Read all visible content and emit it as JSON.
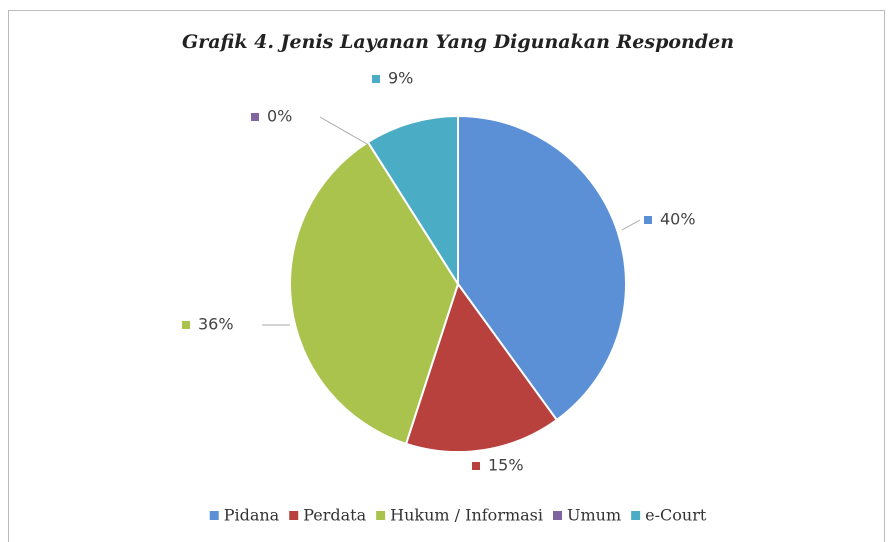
{
  "chart_data": {
    "type": "pie",
    "title": "Grafik 4. Jenis Layanan Yang Digunakan Responden",
    "categories": [
      "Pidana",
      "Perdata",
      "Hukum / Informasi",
      "Umum",
      "e-Court"
    ],
    "values": [
      40,
      15,
      36,
      0,
      9
    ],
    "value_labels": [
      "40%",
      "15%",
      "36%",
      "0%",
      "9%"
    ],
    "colors": [
      "#5b8fd6",
      "#b8413d",
      "#a9c34d",
      "#8064a2",
      "#4bacc6"
    ],
    "legend": "bottom"
  }
}
